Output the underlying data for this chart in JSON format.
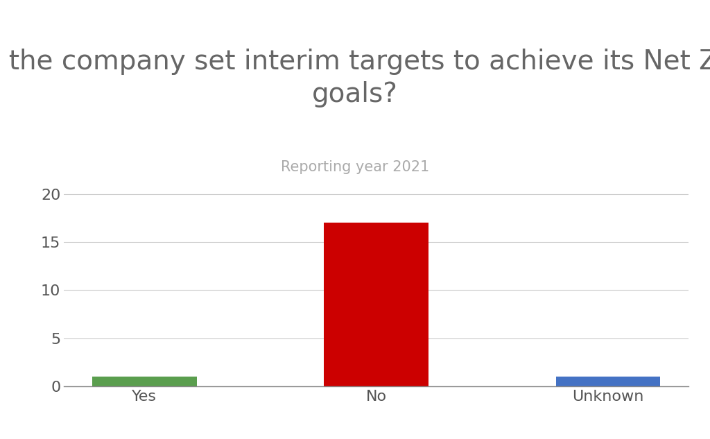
{
  "title": "Has the company set interim targets to achieve its Net Zero\ngoals?",
  "subtitle": "Reporting year 2021",
  "categories": [
    "Yes",
    "No",
    "Unknown"
  ],
  "values": [
    1,
    17,
    1
  ],
  "bar_colors": [
    "#5a9e4e",
    "#cc0000",
    "#4472c4"
  ],
  "ylim": [
    0,
    21
  ],
  "yticks": [
    0,
    5,
    10,
    15,
    20
  ],
  "title_fontsize": 28,
  "subtitle_fontsize": 15,
  "tick_label_fontsize": 16,
  "title_color": "#666666",
  "subtitle_color": "#aaaaaa",
  "tick_color": "#555555",
  "background_color": "#ffffff",
  "grid_color": "#cccccc",
  "bar_width": 0.45
}
